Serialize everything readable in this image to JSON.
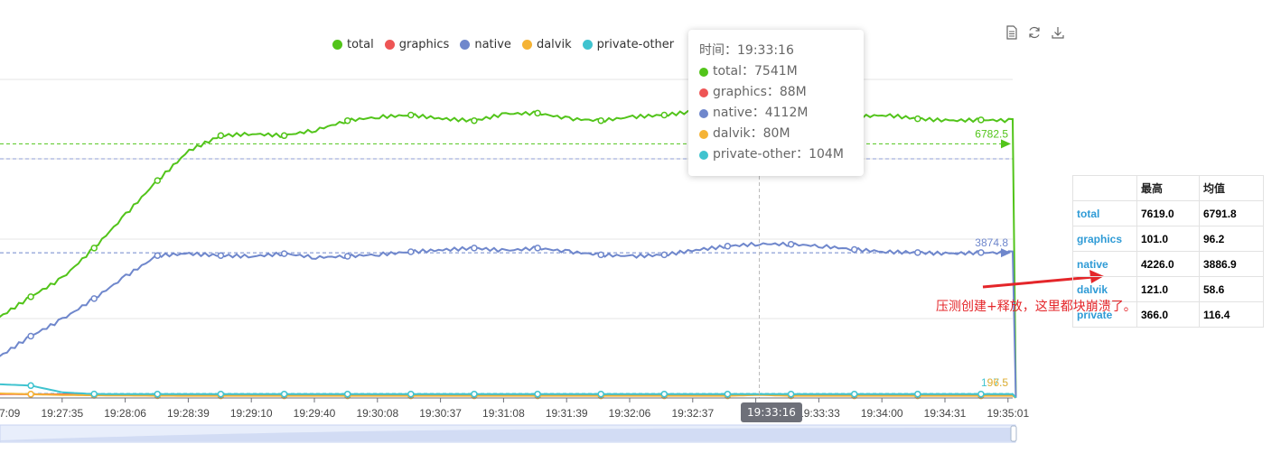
{
  "legend": [
    {
      "label": "total",
      "color": "#52c41a"
    },
    {
      "label": "graphics",
      "color": "#ee5555"
    },
    {
      "label": "native",
      "color": "#6f87cc"
    },
    {
      "label": "dalvik",
      "color": "#f5b335"
    },
    {
      "label": "private-other",
      "color": "#3fc3cf"
    }
  ],
  "toolbox": [
    "document-icon",
    "refresh-icon",
    "download-icon"
  ],
  "tooltip": {
    "time": "时间：19:33:16",
    "rows": [
      {
        "text": "total：7541M",
        "color": "#52c41a"
      },
      {
        "text": "graphics：88M",
        "color": "#ee5555"
      },
      {
        "text": "native：4112M",
        "color": "#6f87cc"
      },
      {
        "text": "dalvik：80M",
        "color": "#f5b335"
      },
      {
        "text": "private-other：104M",
        "color": "#3fc3cf"
      }
    ]
  },
  "axis_pointer_label": "19:33:16",
  "stats_table": {
    "headers": [
      "",
      "最高",
      "均值"
    ],
    "rows": [
      {
        "name": "total",
        "max": "7619.0",
        "avg": "6791.8"
      },
      {
        "name": "graphics",
        "max": "101.0",
        "avg": "96.2"
      },
      {
        "name": "native",
        "max": "4226.0",
        "avg": "3886.9"
      },
      {
        "name": "dalvik",
        "max": "121.0",
        "avg": "58.6"
      },
      {
        "name": "private",
        "max": "366.0",
        "avg": "116.4"
      }
    ]
  },
  "annotation": "压测创建+释放，这里都块崩溃了。",
  "chart_data": {
    "type": "line",
    "x_ticks": [
      "7:09",
      "19:27:35",
      "19:28:06",
      "19:28:39",
      "19:29:10",
      "19:29:40",
      "19:30:08",
      "19:30:37",
      "19:31:08",
      "19:31:39",
      "19:32:06",
      "19:32:37",
      "19:33:16",
      "19:33:33",
      "19:34:00",
      "19:34:31",
      "19:35:01"
    ],
    "ylim": [
      0,
      8500
    ],
    "grid": true,
    "legend_position": "top",
    "x": [
      0,
      0.5,
      1,
      1.5,
      2,
      2.5,
      3,
      3.5,
      4,
      4.5,
      5,
      5.5,
      6,
      6.5,
      7,
      7.5,
      8,
      8.5,
      9,
      9.5,
      10,
      10.5,
      11,
      11.5,
      12,
      12.5,
      13,
      13.5,
      14,
      14.5,
      15,
      15.5,
      16,
      16.05
    ],
    "series": [
      {
        "name": "total",
        "color": "#52c41a",
        "values": [
          2150,
          2700,
          3200,
          4000,
          4900,
          5800,
          6600,
          7000,
          7050,
          7000,
          7150,
          7400,
          7500,
          7550,
          7450,
          7400,
          7580,
          7600,
          7450,
          7400,
          7500,
          7550,
          7650,
          7600,
          7541,
          7600,
          7620,
          7500,
          7550,
          7450,
          7400,
          7420,
          7400,
          30
        ]
      },
      {
        "name": "graphics",
        "color": "#ee5555",
        "values": [
          101,
          99,
          97,
          96,
          96,
          96,
          96,
          96,
          96,
          96,
          96,
          96,
          96,
          96,
          96,
          96,
          96,
          96,
          96,
          96,
          96,
          96,
          96,
          96,
          88,
          96,
          96,
          96,
          96,
          96,
          96,
          96,
          96,
          5
        ]
      },
      {
        "name": "native",
        "color": "#6f87cc",
        "values": [
          1100,
          1650,
          2100,
          2650,
          3250,
          3800,
          3850,
          3800,
          3780,
          3850,
          3750,
          3780,
          3830,
          3900,
          3950,
          4000,
          3930,
          4000,
          3900,
          3820,
          3780,
          3820,
          3950,
          4050,
          4112,
          4100,
          4050,
          3960,
          3900,
          3880,
          3850,
          3880,
          3870,
          5
        ]
      },
      {
        "name": "dalvik",
        "color": "#f5b335",
        "values": [
          121,
          100,
          80,
          70,
          65,
          60,
          58,
          57,
          57,
          57,
          57,
          57,
          57,
          57,
          57,
          57,
          57,
          57,
          57,
          57,
          57,
          57,
          57,
          57,
          80,
          57,
          57,
          57,
          57,
          57,
          57,
          57,
          57,
          5
        ]
      },
      {
        "name": "private-other",
        "color": "#3fc3cf",
        "values": [
          366,
          330,
          150,
          105,
          104,
          104,
          104,
          104,
          104,
          104,
          104,
          104,
          104,
          104,
          104,
          104,
          104,
          104,
          104,
          104,
          104,
          104,
          104,
          104,
          104,
          104,
          104,
          104,
          104,
          104,
          104,
          104,
          104,
          5
        ]
      }
    ],
    "mark_lines": [
      {
        "series": "total",
        "value": 6782.5,
        "label": "6782.5"
      },
      {
        "series": "native",
        "value": 3874.8,
        "label": "3874.8"
      }
    ],
    "end_labels": [
      "197.5",
      "96.5"
    ],
    "pointer_x_index": 24
  }
}
